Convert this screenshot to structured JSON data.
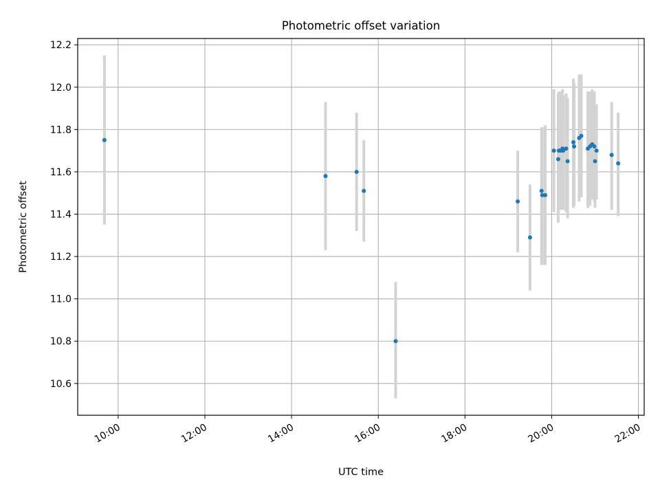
{
  "chart_data": {
    "type": "scatter",
    "title": "Photometric offset variation",
    "xlabel": "UTC time",
    "ylabel": "Photometric offset",
    "xlim": [
      "09:04",
      "22:08"
    ],
    "ylim": [
      10.45,
      12.23
    ],
    "xticks": [
      "10:00",
      "12:00",
      "14:00",
      "16:00",
      "18:00",
      "20:00",
      "22:00"
    ],
    "yticks": [
      "10.6",
      "10.8",
      "11.0",
      "11.2",
      "11.4",
      "11.6",
      "11.8",
      "12.0",
      "12.2"
    ],
    "grid": true,
    "marker_color": "#1f77b4",
    "errorbar_color": "#d3d3d3",
    "points": [
      {
        "x": "09:41",
        "y": 11.75,
        "ylo": 11.35,
        "yhi": 12.15
      },
      {
        "x": "14:47",
        "y": 11.58,
        "ylo": 11.23,
        "yhi": 11.93
      },
      {
        "x": "15:30",
        "y": 11.6,
        "ylo": 11.32,
        "yhi": 11.88
      },
      {
        "x": "15:40",
        "y": 11.51,
        "ylo": 11.27,
        "yhi": 11.75
      },
      {
        "x": "16:24",
        "y": 10.8,
        "ylo": 10.53,
        "yhi": 11.08
      },
      {
        "x": "19:13",
        "y": 11.46,
        "ylo": 11.22,
        "yhi": 11.7
      },
      {
        "x": "19:30",
        "y": 11.29,
        "ylo": 11.04,
        "yhi": 11.54
      },
      {
        "x": "19:46",
        "y": 11.51,
        "ylo": 11.16,
        "yhi": 11.81
      },
      {
        "x": "19:47",
        "y": 11.49,
        "ylo": 11.16,
        "yhi": 11.81
      },
      {
        "x": "19:51",
        "y": 11.49,
        "ylo": 11.16,
        "yhi": 11.82
      },
      {
        "x": "20:03",
        "y": 11.7,
        "ylo": 11.41,
        "yhi": 11.99
      },
      {
        "x": "20:09",
        "y": 11.66,
        "ylo": 11.36,
        "yhi": 11.97
      },
      {
        "x": "20:10",
        "y": 11.7,
        "ylo": 11.43,
        "yhi": 11.98
      },
      {
        "x": "20:13",
        "y": 11.7,
        "ylo": 11.42,
        "yhi": 11.98
      },
      {
        "x": "20:15",
        "y": 11.71,
        "ylo": 11.43,
        "yhi": 11.99
      },
      {
        "x": "20:16",
        "y": 11.7,
        "ylo": 11.42,
        "yhi": 11.96
      },
      {
        "x": "20:20",
        "y": 11.71,
        "ylo": 11.41,
        "yhi": 11.97
      },
      {
        "x": "20:22",
        "y": 11.65,
        "ylo": 11.38,
        "yhi": 11.95
      },
      {
        "x": "20:30",
        "y": 11.74,
        "ylo": 11.43,
        "yhi": 12.04
      },
      {
        "x": "20:31",
        "y": 11.72,
        "ylo": 11.44,
        "yhi": 12.02
      },
      {
        "x": "20:38",
        "y": 11.76,
        "ylo": 11.46,
        "yhi": 12.06
      },
      {
        "x": "20:41",
        "y": 11.77,
        "ylo": 11.48,
        "yhi": 12.06
      },
      {
        "x": "20:50",
        "y": 11.71,
        "ylo": 11.43,
        "yhi": 11.98
      },
      {
        "x": "20:53",
        "y": 11.72,
        "ylo": 11.44,
        "yhi": 11.98
      },
      {
        "x": "20:56",
        "y": 11.73,
        "ylo": 11.47,
        "yhi": 11.99
      },
      {
        "x": "20:59",
        "y": 11.72,
        "ylo": 11.46,
        "yhi": 11.98
      },
      {
        "x": "21:00",
        "y": 11.65,
        "ylo": 11.43,
        "yhi": 11.86
      },
      {
        "x": "21:02",
        "y": 11.7,
        "ylo": 11.47,
        "yhi": 11.92
      },
      {
        "x": "21:23",
        "y": 11.68,
        "ylo": 11.42,
        "yhi": 11.93
      },
      {
        "x": "21:32",
        "y": 11.64,
        "ylo": 11.39,
        "yhi": 11.88
      }
    ]
  }
}
